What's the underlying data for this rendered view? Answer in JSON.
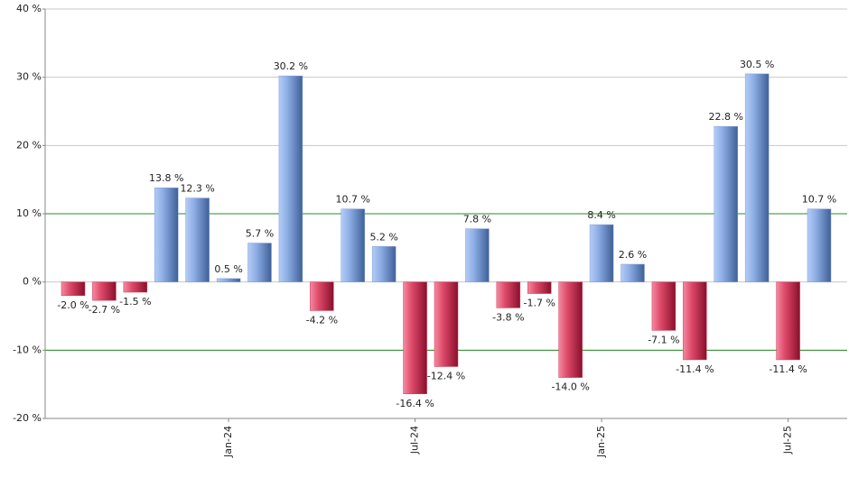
{
  "chart_data": {
    "type": "bar",
    "categories": [
      null,
      null,
      null,
      null,
      null,
      "Jan-24",
      null,
      null,
      null,
      null,
      null,
      "Jul-24",
      null,
      null,
      null,
      null,
      null,
      "Jan-25",
      null,
      null,
      null,
      null,
      null,
      "Jul-25",
      null
    ],
    "values": [
      -2.0,
      -2.7,
      -1.5,
      13.8,
      12.3,
      0.5,
      5.7,
      30.2,
      -4.2,
      10.7,
      5.2,
      -16.4,
      -12.4,
      7.8,
      -3.8,
      -1.7,
      -14.0,
      8.4,
      2.6,
      -7.1,
      -11.4,
      22.8,
      30.5,
      -11.4,
      10.7
    ],
    "value_labels": [
      "-2.0 %",
      "-2.7 %",
      "-1.5 %",
      "13.8 %",
      "12.3 %",
      "0.5 %",
      "5.7 %",
      "30.2 %",
      "-4.2 %",
      "10.7 %",
      "5.2 %",
      "-16.4 %",
      "-12.4 %",
      "7.8 %",
      "-3.8 %",
      "-1.7 %",
      "-14.0 %",
      "8.4 %",
      "2.6 %",
      "-7.1 %",
      "-11.4 %",
      "22.8 %",
      "30.5 %",
      "-11.4 %",
      "10.7 %"
    ],
    "positive_color": "#7f9fd8",
    "negative_color": "#d03a5a",
    "ylim": [
      -20,
      40
    ],
    "yticks": [
      {
        "value": -20,
        "label": "-20 %"
      },
      {
        "value": -10,
        "label": "-10 %"
      },
      {
        "value": 0,
        "label": "0 %"
      },
      {
        "value": 10,
        "label": "10 %"
      },
      {
        "value": 20,
        "label": "20 %"
      },
      {
        "value": 30,
        "label": "30 %"
      },
      {
        "value": 40,
        "label": "40 %"
      }
    ],
    "grid": true,
    "reference_lines": [
      10,
      -10
    ],
    "reference_color": "#2a8a2a"
  }
}
